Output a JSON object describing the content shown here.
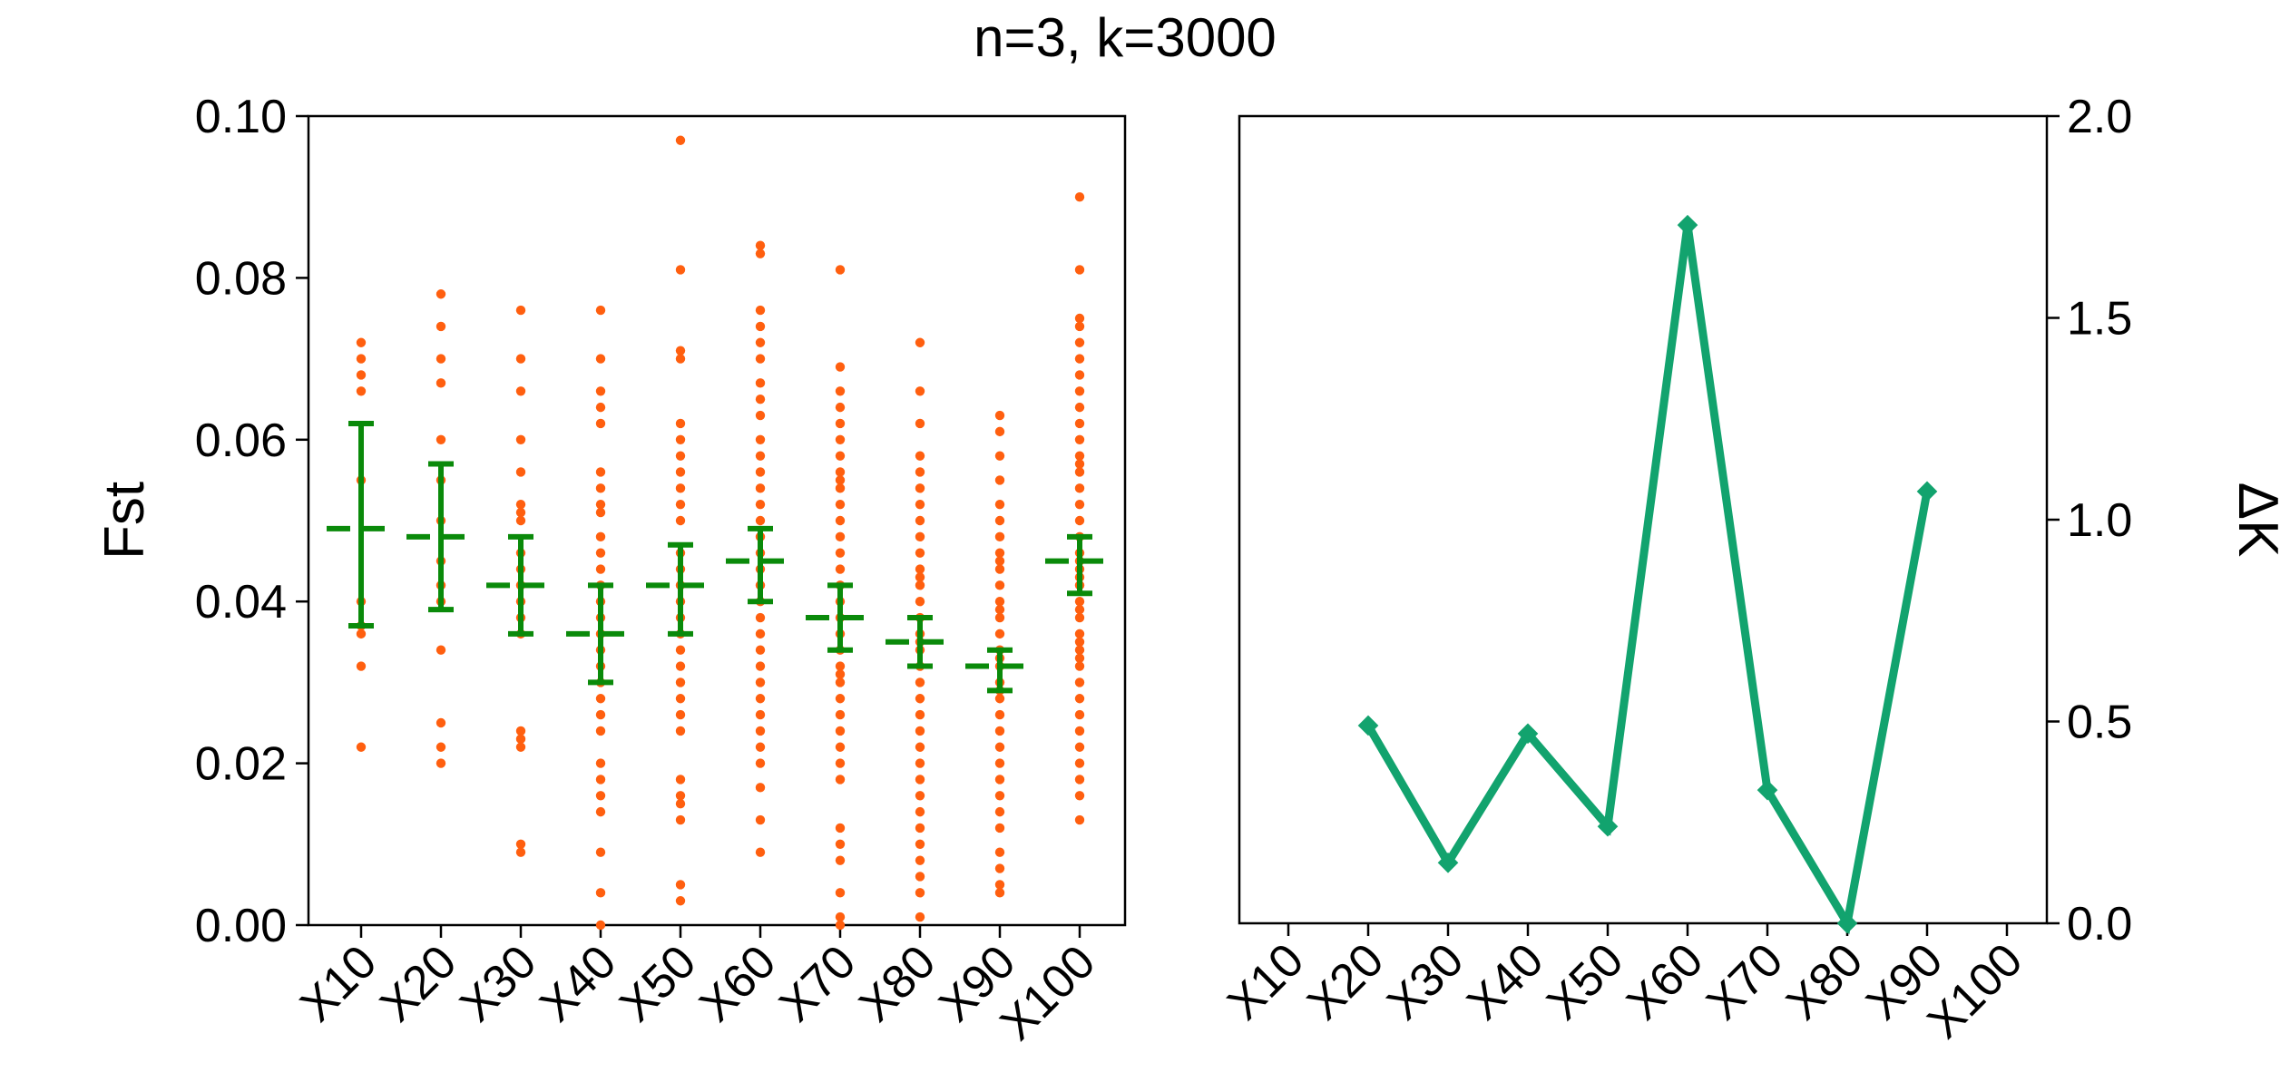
{
  "title": "n=3, k=3000",
  "colors": {
    "dots": "#ff5f0f",
    "errorbar": "#0a8a0a",
    "line": "#12a36e",
    "axis": "#000000"
  },
  "chart_data": [
    {
      "type": "scatter",
      "ylabel": "Fst",
      "ylim": [
        0,
        0.1
      ],
      "yticks": [
        "0.00",
        "0.02",
        "0.04",
        "0.06",
        "0.08",
        "0.10"
      ],
      "categories": [
        "X10",
        "X20",
        "X30",
        "X40",
        "X50",
        "X60",
        "X70",
        "X80",
        "X90",
        "X100"
      ],
      "means": [
        0.049,
        0.048,
        0.042,
        0.036,
        0.042,
        0.045,
        0.038,
        0.035,
        0.032,
        0.045
      ],
      "err_low": [
        0.037,
        0.039,
        0.036,
        0.03,
        0.036,
        0.04,
        0.034,
        0.032,
        0.029,
        0.041
      ],
      "err_high": [
        0.062,
        0.057,
        0.048,
        0.042,
        0.047,
        0.049,
        0.042,
        0.038,
        0.034,
        0.048
      ],
      "points": [
        [
          0.072,
          0.07,
          0.068,
          0.066,
          0.055,
          0.04,
          0.037,
          0.036,
          0.032,
          0.022
        ],
        [
          0.078,
          0.074,
          0.07,
          0.067,
          0.06,
          0.055,
          0.05,
          0.045,
          0.042,
          0.04,
          0.034,
          0.025,
          0.022,
          0.02
        ],
        [
          0.076,
          0.07,
          0.066,
          0.06,
          0.056,
          0.052,
          0.051,
          0.05,
          0.046,
          0.044,
          0.042,
          0.04,
          0.038,
          0.036,
          0.024,
          0.023,
          0.022,
          0.01,
          0.009
        ],
        [
          0.076,
          0.07,
          0.066,
          0.064,
          0.062,
          0.056,
          0.054,
          0.052,
          0.051,
          0.048,
          0.046,
          0.044,
          0.042,
          0.04,
          0.038,
          0.036,
          0.034,
          0.032,
          0.03,
          0.028,
          0.026,
          0.024,
          0.02,
          0.018,
          0.016,
          0.014,
          0.009,
          0.004,
          0.0
        ],
        [
          0.097,
          0.081,
          0.071,
          0.07,
          0.062,
          0.06,
          0.058,
          0.056,
          0.054,
          0.052,
          0.05,
          0.046,
          0.044,
          0.042,
          0.04,
          0.038,
          0.036,
          0.034,
          0.032,
          0.03,
          0.028,
          0.026,
          0.024,
          0.018,
          0.016,
          0.015,
          0.013,
          0.005,
          0.003
        ],
        [
          0.084,
          0.083,
          0.076,
          0.074,
          0.072,
          0.07,
          0.067,
          0.065,
          0.063,
          0.06,
          0.058,
          0.056,
          0.054,
          0.052,
          0.05,
          0.048,
          0.046,
          0.044,
          0.042,
          0.04,
          0.038,
          0.036,
          0.034,
          0.032,
          0.03,
          0.028,
          0.026,
          0.024,
          0.022,
          0.02,
          0.017,
          0.013,
          0.009
        ],
        [
          0.081,
          0.069,
          0.066,
          0.064,
          0.062,
          0.06,
          0.058,
          0.056,
          0.055,
          0.054,
          0.052,
          0.05,
          0.048,
          0.046,
          0.044,
          0.042,
          0.04,
          0.038,
          0.036,
          0.034,
          0.032,
          0.031,
          0.03,
          0.028,
          0.026,
          0.024,
          0.022,
          0.02,
          0.018,
          0.012,
          0.01,
          0.008,
          0.004,
          0.001,
          0.0
        ],
        [
          0.072,
          0.066,
          0.062,
          0.058,
          0.056,
          0.054,
          0.052,
          0.05,
          0.048,
          0.046,
          0.044,
          0.043,
          0.042,
          0.04,
          0.038,
          0.036,
          0.035,
          0.034,
          0.032,
          0.03,
          0.028,
          0.026,
          0.024,
          0.022,
          0.02,
          0.018,
          0.016,
          0.014,
          0.012,
          0.01,
          0.008,
          0.006,
          0.004,
          0.001
        ],
        [
          0.063,
          0.061,
          0.058,
          0.055,
          0.052,
          0.05,
          0.048,
          0.046,
          0.045,
          0.044,
          0.042,
          0.04,
          0.039,
          0.038,
          0.036,
          0.034,
          0.033,
          0.032,
          0.03,
          0.029,
          0.028,
          0.026,
          0.024,
          0.022,
          0.02,
          0.018,
          0.016,
          0.014,
          0.012,
          0.009,
          0.007,
          0.005,
          0.004
        ],
        [
          0.09,
          0.081,
          0.075,
          0.074,
          0.072,
          0.07,
          0.068,
          0.066,
          0.064,
          0.062,
          0.06,
          0.058,
          0.057,
          0.056,
          0.054,
          0.052,
          0.05,
          0.048,
          0.046,
          0.045,
          0.044,
          0.043,
          0.042,
          0.04,
          0.039,
          0.038,
          0.036,
          0.035,
          0.034,
          0.033,
          0.032,
          0.03,
          0.028,
          0.026,
          0.024,
          0.022,
          0.02,
          0.018,
          0.016,
          0.013
        ]
      ]
    },
    {
      "type": "line",
      "ylabel": "ΔK",
      "ylim": [
        0,
        2
      ],
      "yticks": [
        "0.0",
        "0.5",
        "1.0",
        "1.5",
        "2.0"
      ],
      "categories": [
        "X10",
        "X20",
        "X30",
        "X40",
        "X50",
        "X60",
        "X70",
        "X80",
        "X90",
        "X100"
      ],
      "values": [
        null,
        0.49,
        0.15,
        0.47,
        0.24,
        1.73,
        0.33,
        0.0,
        1.07,
        null
      ]
    }
  ]
}
